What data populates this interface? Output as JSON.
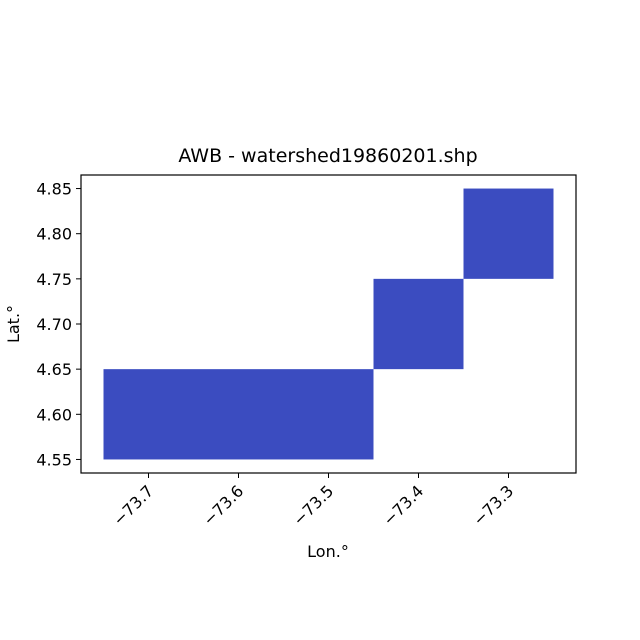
{
  "chart_data": {
    "type": "heatmap",
    "title": "AWB - watershed19860201.shp",
    "xlabel": "Lon.°",
    "ylabel": "Lat.°",
    "xlim": [
      -73.775,
      -73.225
    ],
    "ylim": [
      4.535,
      4.865
    ],
    "x_ticks": [
      -73.7,
      -73.6,
      -73.5,
      -73.4,
      -73.3
    ],
    "x_tick_labels": [
      "−73.7",
      "−73.6",
      "−73.5",
      "−73.4",
      "−73.3"
    ],
    "y_ticks": [
      4.55,
      4.6,
      4.65,
      4.7,
      4.75,
      4.8,
      4.85
    ],
    "y_tick_labels": [
      "4.55",
      "4.60",
      "4.65",
      "4.70",
      "4.75",
      "4.80",
      "4.85"
    ],
    "grid": false,
    "fill_color": "#3b4cc0",
    "cells": [
      {
        "lon": [
          -73.75,
          -73.45
        ],
        "lat": [
          4.55,
          4.65
        ]
      },
      {
        "lon": [
          -73.45,
          -73.35
        ],
        "lat": [
          4.65,
          4.75
        ]
      },
      {
        "lon": [
          -73.35,
          -73.25
        ],
        "lat": [
          4.75,
          4.85
        ]
      }
    ]
  }
}
